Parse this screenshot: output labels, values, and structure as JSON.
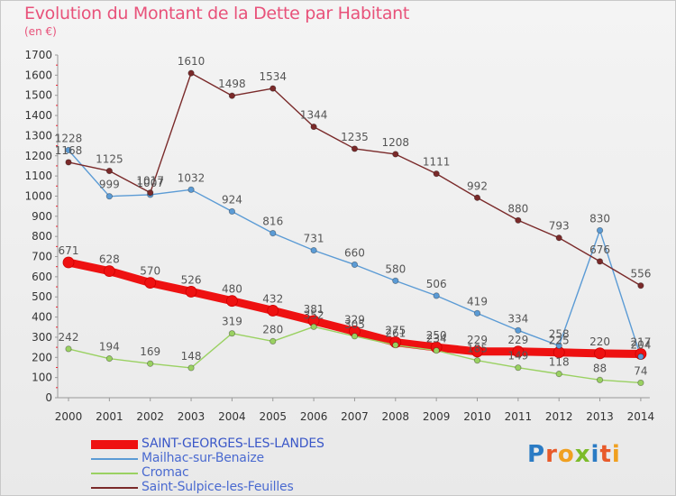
{
  "title": "Evolution du Montant de la Dette par Habitant",
  "subtitle": "(en €)",
  "brand": "Proxiti",
  "chart_data": {
    "type": "line",
    "x": [
      2000,
      2001,
      2002,
      2003,
      2004,
      2005,
      2006,
      2007,
      2008,
      2009,
      2010,
      2011,
      2012,
      2013,
      2014
    ],
    "ylim": [
      0,
      1700
    ],
    "yticks": [
      0,
      100,
      200,
      300,
      400,
      500,
      600,
      700,
      800,
      900,
      1000,
      1100,
      1200,
      1300,
      1400,
      1500,
      1600,
      1700
    ],
    "grid": false,
    "legend": "bottom",
    "series": [
      {
        "name": "SAINT-GEORGES-LES-LANDES",
        "color": "#ee1111",
        "values": [
          671,
          628,
          570,
          526,
          480,
          432,
          381,
          329,
          275,
          250,
          229,
          229,
          225,
          220,
          217
        ]
      },
      {
        "name": "Mailhac-sur-Benaize",
        "color": "#5b9bd5",
        "values": [
          1228,
          999,
          1007,
          1032,
          924,
          816,
          731,
          660,
          580,
          506,
          419,
          334,
          258,
          830,
          204
        ]
      },
      {
        "name": "Cromac",
        "color": "#9ad162",
        "values": [
          242,
          194,
          169,
          148,
          319,
          280,
          352,
          305,
          261,
          234,
          185,
          149,
          118,
          88,
          74
        ]
      },
      {
        "name": "Saint-Sulpice-les-Feuilles",
        "color": "#7a2a2a",
        "values": [
          1168,
          1125,
          1017,
          1610,
          1498,
          1534,
          1344,
          1235,
          1208,
          1111,
          992,
          880,
          793,
          676,
          556
        ]
      }
    ]
  }
}
